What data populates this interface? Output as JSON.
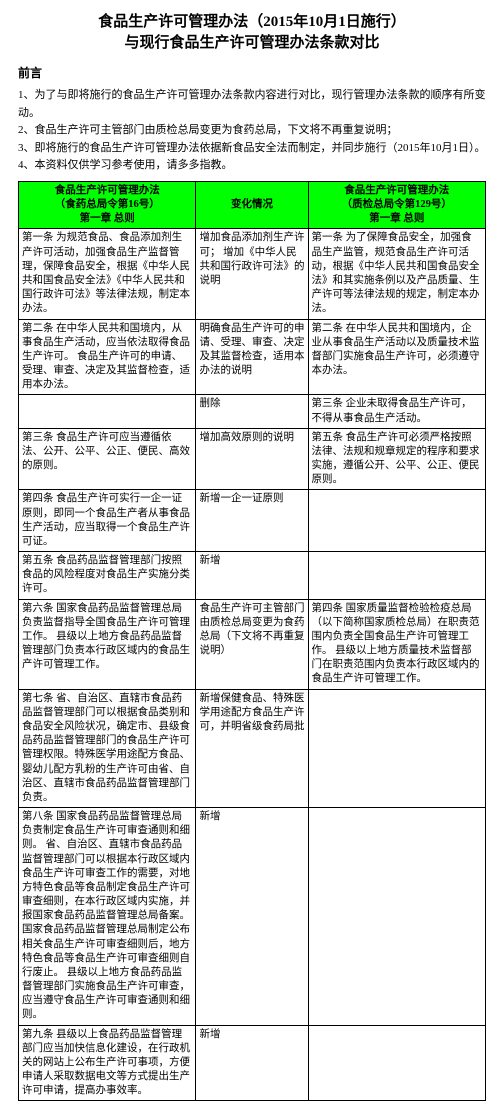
{
  "title_line1": "食品生产许可管理办法（2015年10月1日施行）",
  "title_line2": "与现行食品生产许可管理办法条款对比",
  "preface_title": "前言",
  "preface": [
    "1、为了与即将施行的食品生产许可管理办法条款内容进行对比，现行管理办法条款的顺序有所变动。",
    "2、食品生产许可主管部门由质检总局变更为食药总局，下文将不再重复说明；",
    "3、即将施行的食品生产许可管理办法依据新食品安全法而制定，并同步施行（2015年10月1日）。",
    "4、本资料仅供学习参考使用，请多多指教。"
  ],
  "headers": {
    "left_t": "食品生产许可管理办法",
    "left_b": "（食药总局令第16号）",
    "left_c": "第一章 总则",
    "mid": "变化情况",
    "right_t": "食品生产许可管理办法",
    "right_b": "（质检总局令第129号）",
    "right_c": "第一章 总则"
  },
  "rows": [
    {
      "left": "第一条 为规范食品、食品添加剂生产许可活动，加强食品生产监督管理，保障食品安全，根据《中华人民共和国食品安全法》《中华人民共和国行政许可法》等法律法规，制定本办法。",
      "mid": "增加食品添加剂生产许可；\n增加《中华人民共和国行政许可法》的说明",
      "right": "第一条 为了保障食品安全，加强食品生产监管，规范食品生产许可活动，根据《中华人民共和国食品安全法》和其实施条例以及产品质量、生产许可等法律法规的规定，制定本办法。"
    },
    {
      "left": "第二条 在中华人民共和国境内，从事食品生产活动，应当依法取得食品生产许可。\n食品生产许可的申请、受理、审查、决定及其监督检查，适用本办法。",
      "mid": "明确食品生产许可的申请、受理、审查、决定及其监督检查，适用本办法的说明",
      "right": "第二条 在中华人民共和国境内，企业从事食品生产活动以及质量技术监督部门实施食品生产许可，必须遵守本办法。"
    },
    {
      "left": "",
      "mid": "删除",
      "right": "第三条 企业未取得食品生产许可，不得从事食品生产活动。"
    },
    {
      "left": "第三条 食品生产许可应当遵循依法、公开、公平、公正、便民、高效的原则。",
      "mid": "增加高效原则的说明",
      "right": "第五条 食品生产许可必须严格按照法律、法规和规章规定的程序和要求实施，遵循公开、公平、公正、便民原则。"
    },
    {
      "left": "第四条 食品生产许可实行一企一证原则，即同一个食品生产者从事食品生产活动，应当取得一个食品生产许可证。",
      "mid": "新增一企一证原则",
      "right": ""
    },
    {
      "left": "第五条 食品药品监督管理部门按照食品的风险程度对食品生产实施分类许可。",
      "mid": "新增",
      "right": ""
    },
    {
      "left": "第六条 国家食品药品监督管理总局负责监督指导全国食品生产许可管理工作。\n县级以上地方食品药品监督管理部门负责本行政区域内的食品生产许可管理工作。",
      "mid": "食品生产许可主管部门由质检总局变更为食药总局（下文将不再重复说明）",
      "right": "第四条 国家质量监督检验检疫总局（以下简称国家质检总局）在职责范围内负责全国食品生产许可管理工作。\n县级以上地方质量技术监督部门在职责范围内负责本行政区域内的食品生产许可管理工作。"
    },
    {
      "left": "第七条 省、自治区、直辖市食品药品监督管理部门可以根据食品类别和食品安全风险状况，确定市、县级食品药品监督管理部门的食品生产许可管理权限。特殊医学用途配方食品、婴幼儿配方乳粉的生产许可由省、自治区、直辖市食品药品监督管理部门负责。",
      "mid": "新增保健食品、特殊医学用途配方食品生产许可，并明省级食药局批",
      "right": ""
    },
    {
      "left": "第八条 国家食品药品监督管理总局负责制定食品生产许可审查通则和细则。\n省、自治区、直辖市食品药品监督管理部门可以根据本行政区域内食品生产许可审查工作的需要，对地方特色食品等食品制定食品生产许可审查细则，在本行政区域内实施，并报国家食品药品监督管理总局备案。国家食品药品监督管理总局制定公布相关食品生产许可审查细则后，地方特色食品等食品生产许可审查细则自行废止。\n县级以上地方食品药品监督管理部门实施食品生产许可审查，应当遵守食品生产许可审查通则和细则。",
      "mid": "新增",
      "right": ""
    },
    {
      "left": "第九条 县级以上食品药品监督管理部门应当加快信息化建设，在行政机关的网站上公布生产许可事项，方便申请人采取数据电文等方式提出生产许可申请，提高办事效率。",
      "mid": "新增",
      "right": ""
    }
  ]
}
